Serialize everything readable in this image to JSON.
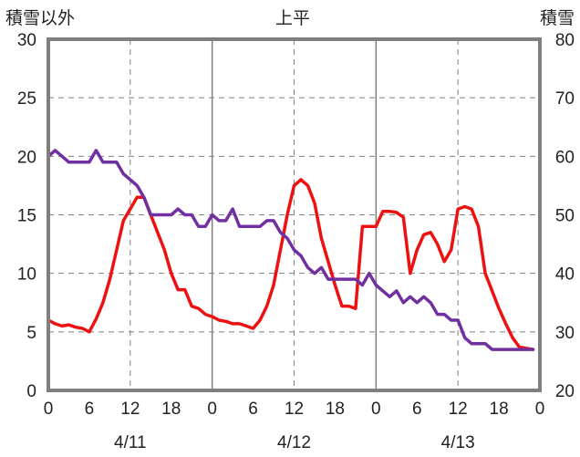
{
  "chart_data": {
    "type": "line",
    "title": "上平",
    "left_axis_label": "積雪以外",
    "right_axis_label": "積雪",
    "left_ylim": [
      0,
      30
    ],
    "left_yticks": [
      0,
      5,
      10,
      15,
      20,
      25,
      30
    ],
    "right_ylim": [
      20,
      80
    ],
    "right_yticks": [
      20,
      30,
      40,
      50,
      60,
      70,
      80
    ],
    "x_ticks": [
      "0",
      "6",
      "12",
      "18",
      "0",
      "6",
      "12",
      "18",
      "0",
      "6",
      "12",
      "18",
      "0"
    ],
    "x_tick_hours": [
      0,
      6,
      12,
      18,
      24,
      30,
      36,
      42,
      48,
      54,
      60,
      66,
      72
    ],
    "date_labels": [
      {
        "label": "4/11",
        "hour": 12
      },
      {
        "label": "4/12",
        "hour": 36
      },
      {
        "label": "4/13",
        "hour": 60
      }
    ],
    "xlim": [
      0,
      72
    ],
    "grid": {
      "dashed_vertical_hours": [
        12,
        36,
        60
      ],
      "solid_vertical_hours": [
        24,
        48
      ],
      "dashed_horizontal": [
        5,
        10,
        15,
        20,
        25
      ]
    },
    "series": [
      {
        "axis": "left",
        "color": "#ee1111",
        "x": [
          0,
          1,
          2,
          3,
          4,
          5,
          6,
          7,
          8,
          9,
          10,
          11,
          12,
          13,
          14,
          15,
          16,
          17,
          18,
          19,
          20,
          21,
          22,
          23,
          24,
          25,
          26,
          27,
          28,
          29,
          30,
          31,
          32,
          33,
          34,
          35,
          36,
          37,
          38,
          39,
          40,
          41,
          42,
          43,
          44,
          45,
          46,
          47,
          47.5,
          48,
          49,
          50,
          51,
          52,
          53,
          54,
          55,
          56,
          57,
          58,
          59,
          60,
          61,
          62,
          63,
          64,
          65,
          66,
          67,
          68,
          69,
          70,
          71
        ],
        "values": [
          6.0,
          5.7,
          5.5,
          5.6,
          5.4,
          5.3,
          5.0,
          6.1,
          7.5,
          9.5,
          12,
          14.5,
          15.5,
          16.5,
          16.5,
          15,
          13.5,
          12,
          10,
          8.6,
          8.6,
          7.2,
          7,
          6.5,
          6.3,
          6,
          5.9,
          5.7,
          5.7,
          5.5,
          5.3,
          6,
          7.2,
          9,
          12,
          15,
          17.5,
          18,
          17.5,
          16,
          13,
          11,
          9,
          7.2,
          7.2,
          7,
          14,
          14,
          14,
          14,
          15.3,
          15.3,
          15.2,
          14.8,
          10,
          12,
          13.3,
          13.5,
          12.5,
          11,
          12,
          15.5,
          15.7,
          15.5,
          14,
          10,
          8.5,
          7,
          5.7,
          4.5,
          3.7,
          3.6,
          3.5
        ]
      },
      {
        "axis": "right",
        "color": "#7030a0",
        "x": [
          0,
          1,
          2,
          3,
          4,
          5,
          6,
          7,
          8,
          9,
          10,
          11,
          12,
          13,
          14,
          15,
          16,
          17,
          18,
          19,
          20,
          21,
          22,
          23,
          24,
          25,
          26,
          27,
          28,
          29,
          30,
          31,
          32,
          33,
          34,
          35,
          36,
          37,
          38,
          39,
          40,
          41,
          42,
          43,
          44,
          45,
          46,
          47,
          48,
          49,
          50,
          51,
          52,
          53,
          54,
          55,
          56,
          57,
          58,
          59,
          60,
          61,
          62,
          63,
          64,
          65,
          66,
          67,
          68,
          69,
          70,
          71
        ],
        "values": [
          60,
          61,
          60,
          59,
          59,
          59,
          59,
          61,
          59,
          59,
          59,
          57,
          56,
          55,
          53,
          50,
          50,
          50,
          50,
          51,
          50,
          50,
          48,
          48,
          50,
          49,
          49,
          51,
          48,
          48,
          48,
          48,
          49,
          49,
          47,
          46,
          44,
          43,
          41,
          40,
          41,
          39,
          39,
          39,
          39,
          39,
          38,
          40,
          38,
          37,
          36,
          37,
          35,
          36,
          35,
          36,
          35,
          33,
          33,
          32,
          32,
          29,
          28,
          28,
          28,
          27,
          27,
          27,
          27,
          27,
          27,
          27
        ]
      }
    ]
  }
}
